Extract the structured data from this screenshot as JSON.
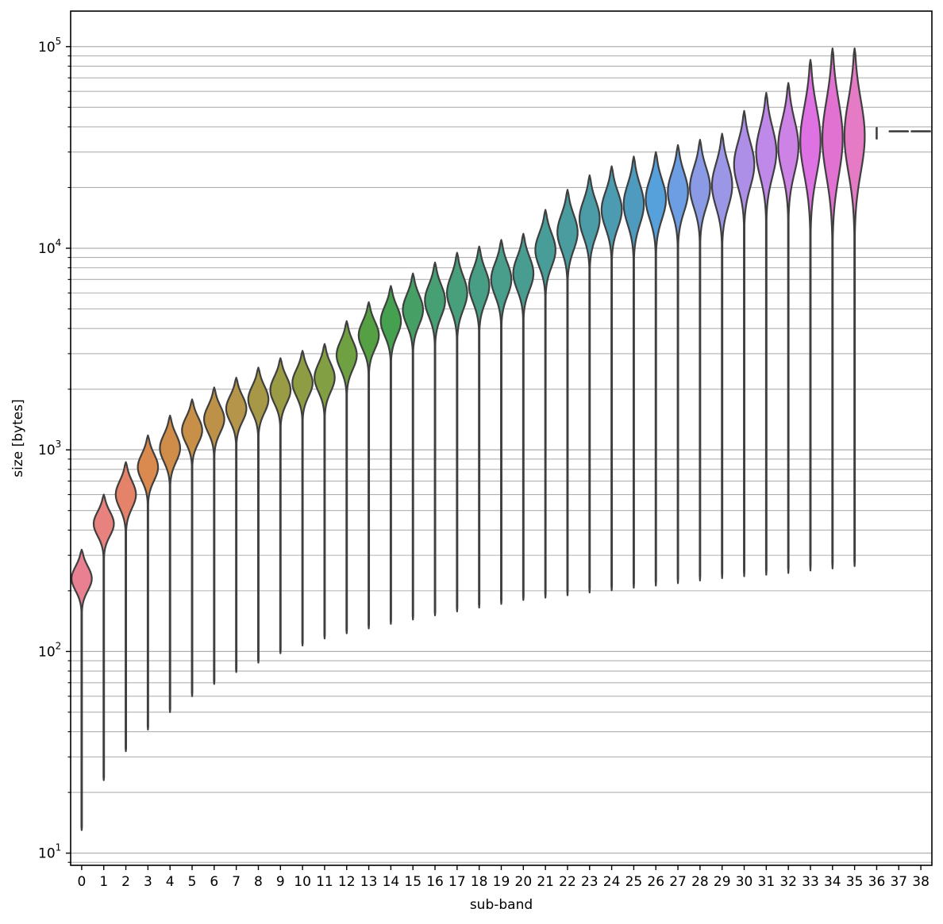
{
  "chart_data": {
    "type": "violin",
    "title": "",
    "xlabel": "sub-band",
    "ylabel": "size [bytes]",
    "yscale": "log",
    "ylim": [
      8.7,
      150000
    ],
    "grid": "y (major and minor)",
    "x_tick_labels": [
      "0",
      "1",
      "2",
      "3",
      "4",
      "5",
      "6",
      "7",
      "8",
      "9",
      "10",
      "11",
      "12",
      "13",
      "14",
      "15",
      "16",
      "17",
      "18",
      "19",
      "20",
      "21",
      "22",
      "23",
      "24",
      "25",
      "26",
      "27",
      "28",
      "29",
      "30",
      "31",
      "32",
      "33",
      "34",
      "35",
      "36",
      "37",
      "38"
    ],
    "y_ticks": [
      {
        "base": "10",
        "exp": "1",
        "value": 10
      },
      {
        "base": "10",
        "exp": "2",
        "value": 100
      },
      {
        "base": "10",
        "exp": "3",
        "value": 1000
      },
      {
        "base": "10",
        "exp": "4",
        "value": 10000
      },
      {
        "base": "10",
        "exp": "5",
        "value": 100000
      }
    ],
    "series": [
      {
        "band": 0,
        "min": 13,
        "median": 230,
        "max": 320,
        "color": "#e88092"
      },
      {
        "band": 1,
        "min": 23,
        "median": 430,
        "max": 600,
        "color": "#e8827f"
      },
      {
        "band": 2,
        "min": 32,
        "median": 600,
        "max": 870,
        "color": "#e4826a"
      },
      {
        "band": 3,
        "min": 41,
        "median": 820,
        "max": 1180,
        "color": "#db8a4f"
      },
      {
        "band": 4,
        "min": 50,
        "median": 1020,
        "max": 1480,
        "color": "#d08d4a"
      },
      {
        "band": 5,
        "min": 60,
        "median": 1250,
        "max": 1780,
        "color": "#c78f47"
      },
      {
        "band": 6,
        "min": 69,
        "median": 1420,
        "max": 2040,
        "color": "#bd9248"
      },
      {
        "band": 7,
        "min": 79,
        "median": 1600,
        "max": 2280,
        "color": "#b4954a"
      },
      {
        "band": 8,
        "min": 88,
        "median": 1780,
        "max": 2560,
        "color": "#a79848"
      },
      {
        "band": 9,
        "min": 98,
        "median": 1980,
        "max": 2850,
        "color": "#999b45"
      },
      {
        "band": 10,
        "min": 107,
        "median": 2150,
        "max": 3100,
        "color": "#8e9d44"
      },
      {
        "band": 11,
        "min": 116,
        "median": 2280,
        "max": 3350,
        "color": "#829f44"
      },
      {
        "band": 12,
        "min": 123,
        "median": 2950,
        "max": 4350,
        "color": "#6fa142"
      },
      {
        "band": 13,
        "min": 130,
        "median": 3700,
        "max": 5400,
        "color": "#55a043"
      },
      {
        "band": 14,
        "min": 137,
        "median": 4350,
        "max": 6500,
        "color": "#45a04f"
      },
      {
        "band": 15,
        "min": 144,
        "median": 4950,
        "max": 7500,
        "color": "#46a066"
      },
      {
        "band": 16,
        "min": 151,
        "median": 5500,
        "max": 8500,
        "color": "#47a073"
      },
      {
        "band": 17,
        "min": 158,
        "median": 6000,
        "max": 9500,
        "color": "#489f7c"
      },
      {
        "band": 18,
        "min": 165,
        "median": 6500,
        "max": 10200,
        "color": "#489e84"
      },
      {
        "band": 19,
        "min": 172,
        "median": 7000,
        "max": 11000,
        "color": "#489e8a"
      },
      {
        "band": 20,
        "min": 180,
        "median": 7500,
        "max": 11800,
        "color": "#489d90"
      },
      {
        "band": 21,
        "min": 185,
        "median": 9800,
        "max": 15500,
        "color": "#499d98"
      },
      {
        "band": 22,
        "min": 190,
        "median": 12000,
        "max": 19500,
        "color": "#4a9c9f"
      },
      {
        "band": 23,
        "min": 196,
        "median": 14000,
        "max": 23000,
        "color": "#4b9ca7"
      },
      {
        "band": 24,
        "min": 201,
        "median": 15500,
        "max": 25500,
        "color": "#4c9bb0"
      },
      {
        "band": 25,
        "min": 207,
        "median": 16500,
        "max": 28500,
        "color": "#4e9bbf"
      },
      {
        "band": 26,
        "min": 212,
        "median": 17500,
        "max": 30000,
        "color": "#56a0db"
      },
      {
        "band": 27,
        "min": 218,
        "median": 19000,
        "max": 32500,
        "color": "#6d9de2"
      },
      {
        "band": 28,
        "min": 225,
        "median": 20000,
        "max": 34500,
        "color": "#8a9ae5"
      },
      {
        "band": 29,
        "min": 231,
        "median": 20500,
        "max": 37000,
        "color": "#9c96e6"
      },
      {
        "band": 30,
        "min": 236,
        "median": 26000,
        "max": 48000,
        "color": "#ae8fe8"
      },
      {
        "band": 31,
        "min": 240,
        "median": 30000,
        "max": 59000,
        "color": "#be89e8"
      },
      {
        "band": 32,
        "min": 245,
        "median": 32000,
        "max": 66000,
        "color": "#cd83e5"
      },
      {
        "band": 33,
        "min": 252,
        "median": 34000,
        "max": 86000,
        "color": "#df72e3"
      },
      {
        "band": 34,
        "min": 258,
        "median": 35000,
        "max": 98000,
        "color": "#e272d2"
      },
      {
        "band": 35,
        "min": 265,
        "median": 36000,
        "max": 98000,
        "color": "#e47bc4"
      },
      {
        "band": 36,
        "min": 35000,
        "median": 37500,
        "max": 39500,
        "color": "#e48bb6"
      },
      {
        "band": 37,
        "min": 38000,
        "median": 38000,
        "max": 38000,
        "color": "#e68aa8"
      },
      {
        "band": 38,
        "min": 38000,
        "median": 38000,
        "max": 38000,
        "color": "#e8859f"
      }
    ]
  }
}
